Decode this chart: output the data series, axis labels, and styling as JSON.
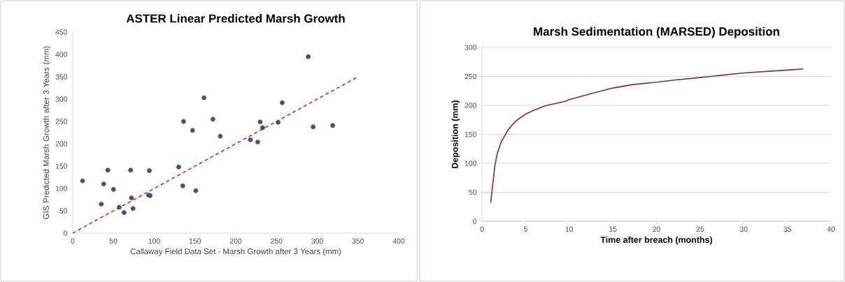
{
  "chart_data": [
    {
      "type": "scatter",
      "title": "ASTER Linear Predicted Marsh Growth",
      "xlabel": "Callaway Field Data Set - Marsh Growth after 3 Years (mm)",
      "ylabel": "GIS Predicted Marsh Growth after 3 Years (mm)",
      "xlim": [
        0,
        400
      ],
      "xticks": [
        0,
        50,
        100,
        150,
        200,
        250,
        300,
        350,
        400
      ],
      "ylim": [
        0,
        450
      ],
      "yticks": [
        0,
        50,
        100,
        150,
        200,
        250,
        300,
        350,
        400,
        450
      ],
      "grid": false,
      "series": [
        {
          "color": "#4b4a8a",
          "marker": "circle",
          "x": [
            12,
            35,
            38,
            43,
            50,
            57,
            63,
            71,
            72,
            74,
            94,
            93,
            95,
            130,
            135,
            136,
            147,
            151,
            161,
            172,
            181,
            218,
            227,
            230,
            233,
            252,
            257,
            289,
            295,
            319
          ],
          "values": [
            117,
            65,
            110,
            141,
            98,
            58,
            46,
            141,
            79,
            55,
            140,
            85,
            84,
            148,
            106,
            250,
            230,
            95,
            303,
            255,
            217,
            209,
            204,
            249,
            236,
            248,
            292,
            395,
            238,
            241
          ]
        },
        {
          "type": "line",
          "color": "#e02020",
          "line_style": "dashed",
          "marker": "none",
          "x": [
            0,
            350
          ],
          "values": [
            0,
            350
          ]
        }
      ]
    },
    {
      "type": "line",
      "title": "Marsh Sedimentation (MARSED) Deposition",
      "xlabel": "Time after breach (months)",
      "ylabel": "Deposition (mm)",
      "xlim": [
        0,
        40
      ],
      "xticks": [
        0,
        5,
        10,
        15,
        20,
        25,
        30,
        35,
        40
      ],
      "ylim": [
        0,
        300
      ],
      "yticks": [
        0,
        50,
        100,
        150,
        200,
        250,
        300
      ],
      "grid": "y",
      "series": [
        {
          "color": "#8b2a2a",
          "line_style": "solid",
          "marker": "none",
          "x": [
            1.0,
            1.47,
            1.74,
            2.2,
            3.0,
            3.8,
            5.0,
            6.0,
            7.2,
            9.5,
            10,
            12.7,
            15,
            17.3,
            20,
            22.2,
            25,
            27.4,
            30,
            35,
            36.8
          ],
          "values": [
            32,
            95,
            116,
            137,
            158,
            172,
            185,
            192,
            199,
            207,
            210,
            221,
            230,
            236,
            240,
            244,
            248,
            252,
            256,
            261,
            263
          ]
        }
      ]
    }
  ]
}
